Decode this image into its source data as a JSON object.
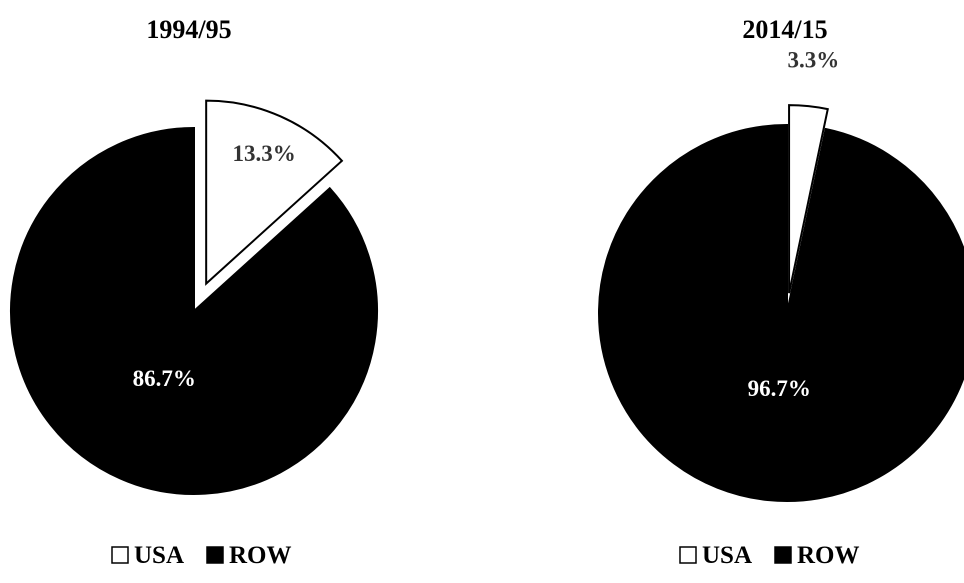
{
  "chart_data": [
    {
      "type": "pie",
      "title": "1994/95",
      "slices": [
        {
          "label": "USA",
          "value": 13.3,
          "value_label": "13.3%",
          "color": "#ffffff",
          "exploded": true
        },
        {
          "label": "ROW",
          "value": 86.7,
          "value_label": "86.7%",
          "color": "#000000",
          "exploded": false
        }
      ],
      "legend": {
        "placement": "bottom",
        "entries": [
          "USA",
          "ROW"
        ]
      }
    },
    {
      "type": "pie",
      "title": "2014/15",
      "slices": [
        {
          "label": "USA",
          "value": 3.3,
          "value_label": "3.3%",
          "color": "#ffffff",
          "exploded": true
        },
        {
          "label": "ROW",
          "value": 96.7,
          "value_label": "96.7%",
          "color": "#000000",
          "exploded": false
        }
      ],
      "legend": {
        "placement": "bottom",
        "entries": [
          "USA",
          "ROW"
        ]
      }
    }
  ]
}
